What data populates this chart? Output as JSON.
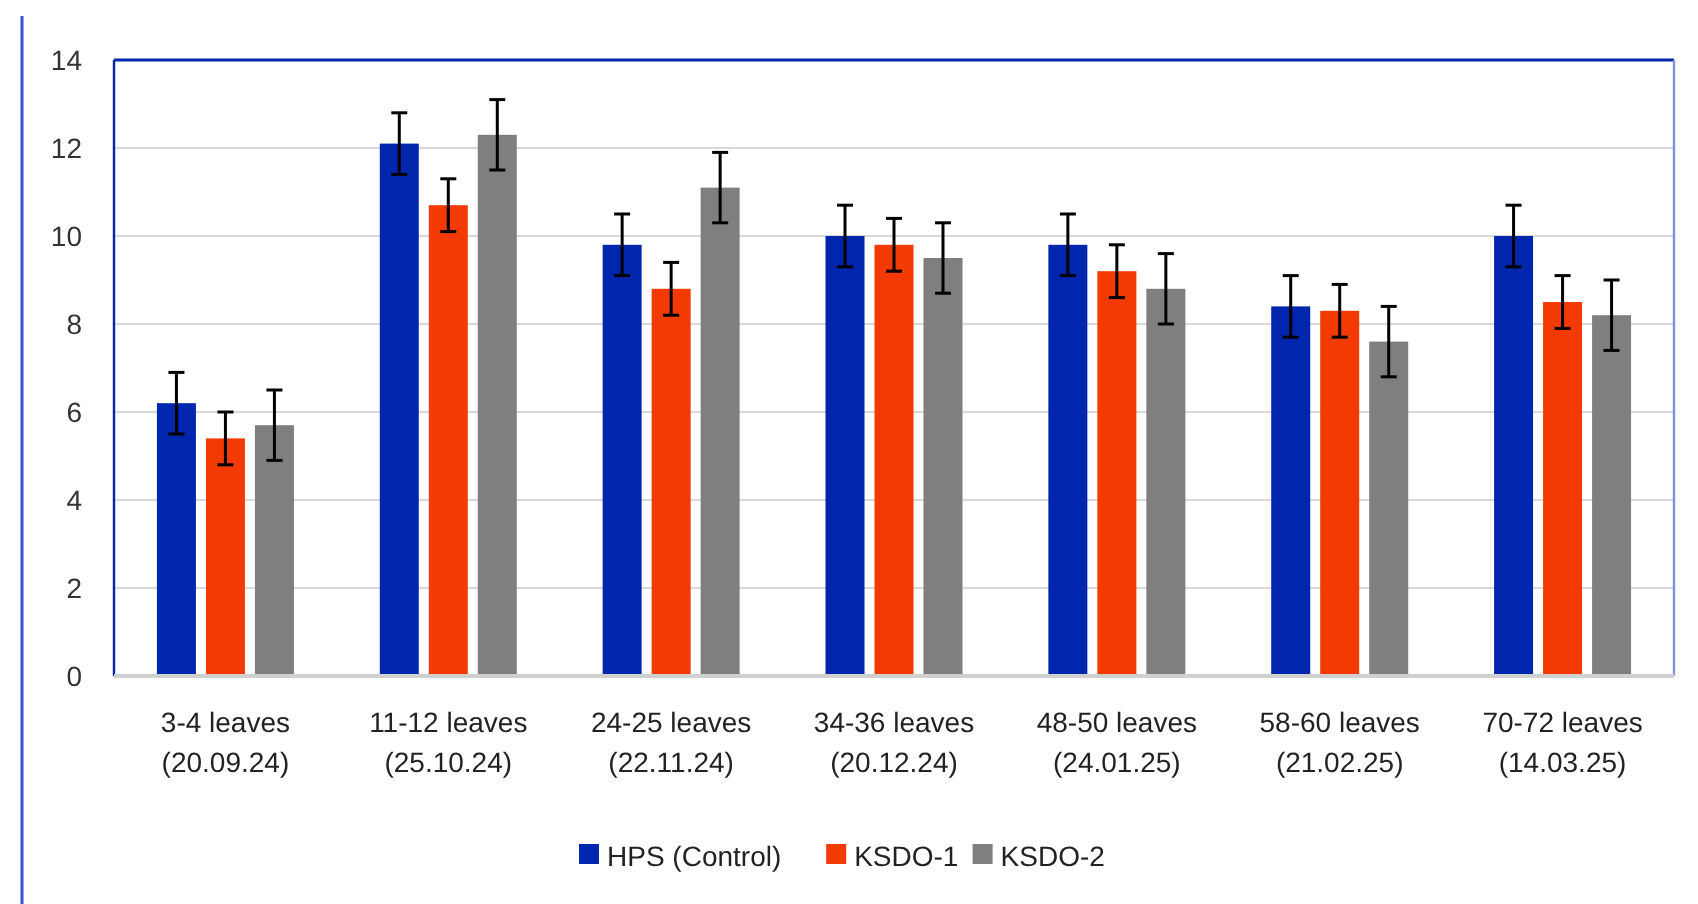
{
  "chart_data": {
    "type": "bar",
    "categories": [
      "3-4 leaves\n(20.09.24)",
      "11-12 leaves\n(25.10.24)",
      "24-25 leaves\n(22.11.24)",
      "34-36 leaves\n(20.12.24)",
      "48-50 leaves\n(24.01.25)",
      "58-60 leaves\n(21.02.25)",
      "70-72 leaves\n(14.03.25)"
    ],
    "series": [
      {
        "name": "HPS (Control)",
        "color": "#0026ad",
        "values": [
          6.2,
          12.1,
          9.8,
          10.0,
          9.8,
          8.4,
          10.0
        ],
        "errors": [
          0.7,
          0.7,
          0.7,
          0.7,
          0.7,
          0.7,
          0.7
        ]
      },
      {
        "name": "KSDO-1",
        "color": "#f23a02",
        "values": [
          5.4,
          10.7,
          8.8,
          9.8,
          9.2,
          8.3,
          8.5
        ],
        "errors": [
          0.6,
          0.6,
          0.6,
          0.6,
          0.6,
          0.6,
          0.6
        ]
      },
      {
        "name": "KSDO-2",
        "color": "#7f7f7f",
        "values": [
          5.7,
          12.3,
          11.1,
          9.5,
          8.8,
          7.6,
          8.2
        ],
        "errors": [
          0.8,
          0.8,
          0.8,
          0.8,
          0.8,
          0.8,
          0.8
        ]
      }
    ],
    "ylim": [
      0,
      14
    ],
    "yticks": [
      0,
      2,
      4,
      6,
      8,
      10,
      12,
      14
    ],
    "grid": "y",
    "legend": "bottom"
  }
}
